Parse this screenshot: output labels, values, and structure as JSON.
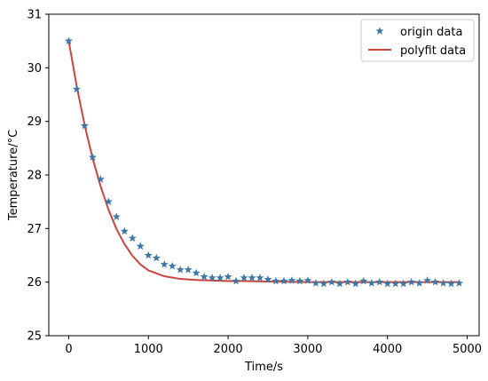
{
  "chart_data": {
    "type": "scatter",
    "title": "",
    "xlabel": "Time/s",
    "ylabel": "Temperature/°C",
    "xlim": [
      -250,
      5150
    ],
    "ylim": [
      25,
      31
    ],
    "xticks": [
      0,
      1000,
      2000,
      3000,
      4000,
      5000
    ],
    "yticks": [
      25,
      26,
      27,
      28,
      29,
      30,
      31
    ],
    "grid": false,
    "legend_position": "top-right",
    "series": [
      {
        "name": "origin data",
        "kind": "scatter",
        "marker": "star",
        "color": "#3d77a8",
        "x": [
          0,
          100,
          200,
          300,
          400,
          500,
          600,
          700,
          800,
          900,
          1000,
          1100,
          1200,
          1300,
          1400,
          1500,
          1600,
          1700,
          1800,
          1900,
          2000,
          2100,
          2200,
          2300,
          2400,
          2500,
          2600,
          2700,
          2800,
          2900,
          3000,
          3100,
          3200,
          3300,
          3400,
          3500,
          3600,
          3700,
          3800,
          3900,
          4000,
          4100,
          4200,
          4300,
          4400,
          4500,
          4600,
          4700,
          4800,
          4900
        ],
        "y": [
          30.5,
          29.6,
          28.92,
          28.33,
          27.92,
          27.5,
          27.22,
          26.95,
          26.82,
          26.67,
          26.5,
          26.45,
          26.33,
          26.3,
          26.23,
          26.23,
          26.17,
          26.1,
          26.08,
          26.08,
          26.1,
          26.02,
          26.08,
          26.08,
          26.08,
          26.05,
          26.02,
          26.02,
          26.03,
          26.02,
          26.03,
          25.98,
          25.97,
          26.0,
          25.97,
          26.0,
          25.97,
          26.02,
          25.98,
          26.0,
          25.97,
          25.97,
          25.97,
          26.0,
          25.98,
          26.03,
          26.0,
          25.98,
          25.97,
          25.98
        ]
      },
      {
        "name": "polyfit data",
        "kind": "line",
        "color": "#c9453b",
        "x": [
          0,
          100,
          200,
          300,
          400,
          500,
          600,
          700,
          800,
          900,
          1000,
          1200,
          1400,
          1600,
          1800,
          2000,
          2200,
          2500,
          3000,
          3500,
          4000,
          4500,
          4900
        ],
        "y": [
          30.5,
          29.66,
          28.93,
          28.31,
          27.79,
          27.35,
          26.99,
          26.71,
          26.49,
          26.33,
          26.22,
          26.11,
          26.06,
          26.04,
          26.03,
          26.02,
          26.02,
          26.01,
          26.0,
          26.0,
          26.0,
          26.0,
          26.0
        ]
      }
    ]
  }
}
